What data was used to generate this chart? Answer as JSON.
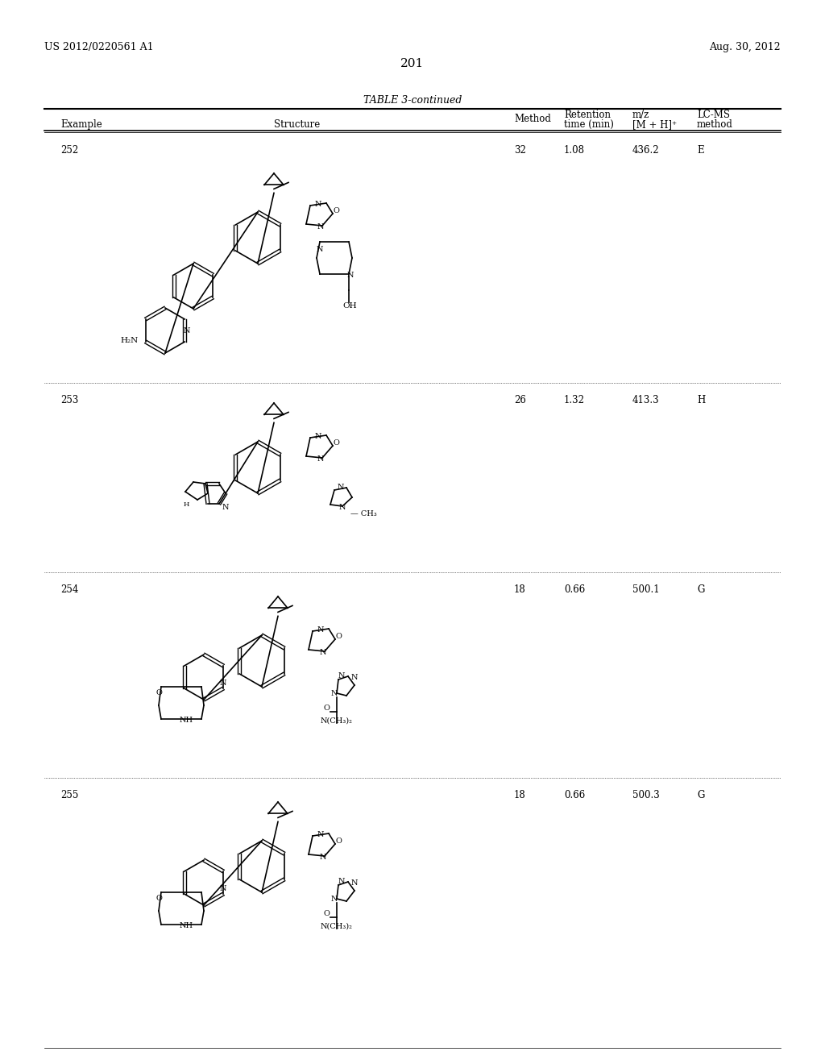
{
  "page_number": "201",
  "patent_number": "US 2012/0220561 A1",
  "patent_date": "Aug. 30, 2012",
  "table_title": "TABLE 3-continued",
  "col_headers": [
    "Example",
    "Structure",
    "Method",
    "Retention\ntime (min)",
    "m/z\n[M + H]⁺",
    "LC-MS\nmethod"
  ],
  "rows": [
    {
      "example": "252",
      "method": "32",
      "retention": "1.08",
      "mz": "436.2",
      "lcms": "E"
    },
    {
      "example": "253",
      "method": "26",
      "retention": "1.32",
      "mz": "413.3",
      "lcms": "H"
    },
    {
      "example": "254",
      "method": "18",
      "retention": "0.66",
      "mz": "500.1",
      "lcms": "G"
    },
    {
      "example": "255",
      "method": "18",
      "retention": "0.66",
      "mz": "500.3",
      "lcms": "G"
    }
  ],
  "background_color": "#ffffff",
  "text_color": "#000000",
  "font_size_header": 8.5,
  "font_size_body": 8.5,
  "font_size_page_num": 11,
  "font_size_patent": 9,
  "font_size_table_title": 9
}
